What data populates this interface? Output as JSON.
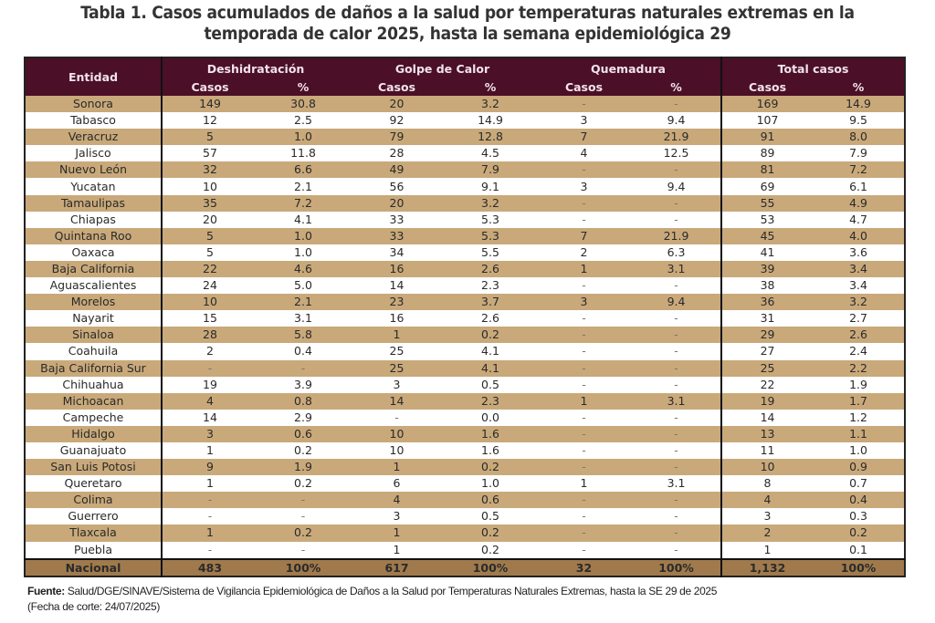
{
  "title": {
    "line1": "Tabla 1. Casos acumulados de daños a la salud por temperaturas naturales extremas en la",
    "line2": "temporada de calor 2025, hasta la semana epidemiológica 29"
  },
  "table": {
    "header": {
      "entidad": "Entidad",
      "groups": [
        "Deshidratación",
        "Golpe de Calor",
        "Quemadura",
        "Total casos"
      ],
      "sub": [
        "Casos",
        "%",
        "Casos",
        "%",
        "Casos",
        "%",
        "Casos",
        "%"
      ]
    },
    "rows": [
      {
        "entidad": "Sonora",
        "v": [
          "149",
          "30.8",
          "20",
          "3.2",
          "-",
          "-",
          "169",
          "14.9"
        ]
      },
      {
        "entidad": "Tabasco",
        "v": [
          "12",
          "2.5",
          "92",
          "14.9",
          "3",
          "9.4",
          "107",
          "9.5"
        ]
      },
      {
        "entidad": "Veracruz",
        "v": [
          "5",
          "1.0",
          "79",
          "12.8",
          "7",
          "21.9",
          "91",
          "8.0"
        ]
      },
      {
        "entidad": "Jalisco",
        "v": [
          "57",
          "11.8",
          "28",
          "4.5",
          "4",
          "12.5",
          "89",
          "7.9"
        ]
      },
      {
        "entidad": "Nuevo León",
        "v": [
          "32",
          "6.6",
          "49",
          "7.9",
          "-",
          "-",
          "81",
          "7.2"
        ]
      },
      {
        "entidad": "Yucatan",
        "v": [
          "10",
          "2.1",
          "56",
          "9.1",
          "3",
          "9.4",
          "69",
          "6.1"
        ]
      },
      {
        "entidad": "Tamaulipas",
        "v": [
          "35",
          "7.2",
          "20",
          "3.2",
          "-",
          "-",
          "55",
          "4.9"
        ]
      },
      {
        "entidad": "Chiapas",
        "v": [
          "20",
          "4.1",
          "33",
          "5.3",
          "-",
          "-",
          "53",
          "4.7"
        ]
      },
      {
        "entidad": "Quintana Roo",
        "v": [
          "5",
          "1.0",
          "33",
          "5.3",
          "7",
          "21.9",
          "45",
          "4.0"
        ]
      },
      {
        "entidad": "Oaxaca",
        "v": [
          "5",
          "1.0",
          "34",
          "5.5",
          "2",
          "6.3",
          "41",
          "3.6"
        ]
      },
      {
        "entidad": "Baja California",
        "v": [
          "22",
          "4.6",
          "16",
          "2.6",
          "1",
          "3.1",
          "39",
          "3.4"
        ]
      },
      {
        "entidad": "Aguascalientes",
        "v": [
          "24",
          "5.0",
          "14",
          "2.3",
          "-",
          "-",
          "38",
          "3.4"
        ]
      },
      {
        "entidad": "Morelos",
        "v": [
          "10",
          "2.1",
          "23",
          "3.7",
          "3",
          "9.4",
          "36",
          "3.2"
        ]
      },
      {
        "entidad": "Nayarit",
        "v": [
          "15",
          "3.1",
          "16",
          "2.6",
          "-",
          "-",
          "31",
          "2.7"
        ]
      },
      {
        "entidad": "Sinaloa",
        "v": [
          "28",
          "5.8",
          "1",
          "0.2",
          "-",
          "-",
          "29",
          "2.6"
        ]
      },
      {
        "entidad": "Coahuila",
        "v": [
          "2",
          "0.4",
          "25",
          "4.1",
          "-",
          "-",
          "27",
          "2.4"
        ]
      },
      {
        "entidad": "Baja California Sur",
        "v": [
          "-",
          "-",
          "25",
          "4.1",
          "-",
          "-",
          "25",
          "2.2"
        ]
      },
      {
        "entidad": "Chihuahua",
        "v": [
          "19",
          "3.9",
          "3",
          "0.5",
          "-",
          "-",
          "22",
          "1.9"
        ]
      },
      {
        "entidad": "Michoacan",
        "v": [
          "4",
          "0.8",
          "14",
          "2.3",
          "1",
          "3.1",
          "19",
          "1.7"
        ]
      },
      {
        "entidad": "Campeche",
        "v": [
          "14",
          "2.9",
          "-",
          "0.0",
          "-",
          "-",
          "14",
          "1.2"
        ]
      },
      {
        "entidad": "Hidalgo",
        "v": [
          "3",
          "0.6",
          "10",
          "1.6",
          "-",
          "-",
          "13",
          "1.1"
        ]
      },
      {
        "entidad": "Guanajuato",
        "v": [
          "1",
          "0.2",
          "10",
          "1.6",
          "-",
          "-",
          "11",
          "1.0"
        ]
      },
      {
        "entidad": "San Luis Potosi",
        "v": [
          "9",
          "1.9",
          "1",
          "0.2",
          "-",
          "-",
          "10",
          "0.9"
        ]
      },
      {
        "entidad": "Queretaro",
        "v": [
          "1",
          "0.2",
          "6",
          "1.0",
          "1",
          "3.1",
          "8",
          "0.7"
        ]
      },
      {
        "entidad": "Colima",
        "v": [
          "-",
          "-",
          "4",
          "0.6",
          "-",
          "-",
          "4",
          "0.4"
        ]
      },
      {
        "entidad": "Guerrero",
        "v": [
          "-",
          "-",
          "3",
          "0.5",
          "-",
          "-",
          "3",
          "0.3"
        ]
      },
      {
        "entidad": "Tlaxcala",
        "v": [
          "1",
          "0.2",
          "1",
          "0.2",
          "-",
          "-",
          "2",
          "0.2"
        ]
      },
      {
        "entidad": "Puebla",
        "v": [
          "-",
          "-",
          "1",
          "0.2",
          "-",
          "-",
          "1",
          "0.1"
        ]
      }
    ],
    "total": {
      "entidad": "Nacional",
      "v": [
        "483",
        "100%",
        "617",
        "100%",
        "32",
        "100%",
        "1,132",
        "100%"
      ]
    }
  },
  "source": {
    "label": "Fuente:",
    "text": " Salud/DGE/SINAVE/Sistema de Vigilancia Epidemiológica de Daños a la Salud por Temperaturas Naturales Extremas, hasta la SE 29 de 2025",
    "cutoff": "(Fecha de corte: 24/07/2025)"
  },
  "colors": {
    "header_bg": "#4b0f27",
    "stripe": "#c9a97a",
    "total_bg": "#a07a4c"
  }
}
